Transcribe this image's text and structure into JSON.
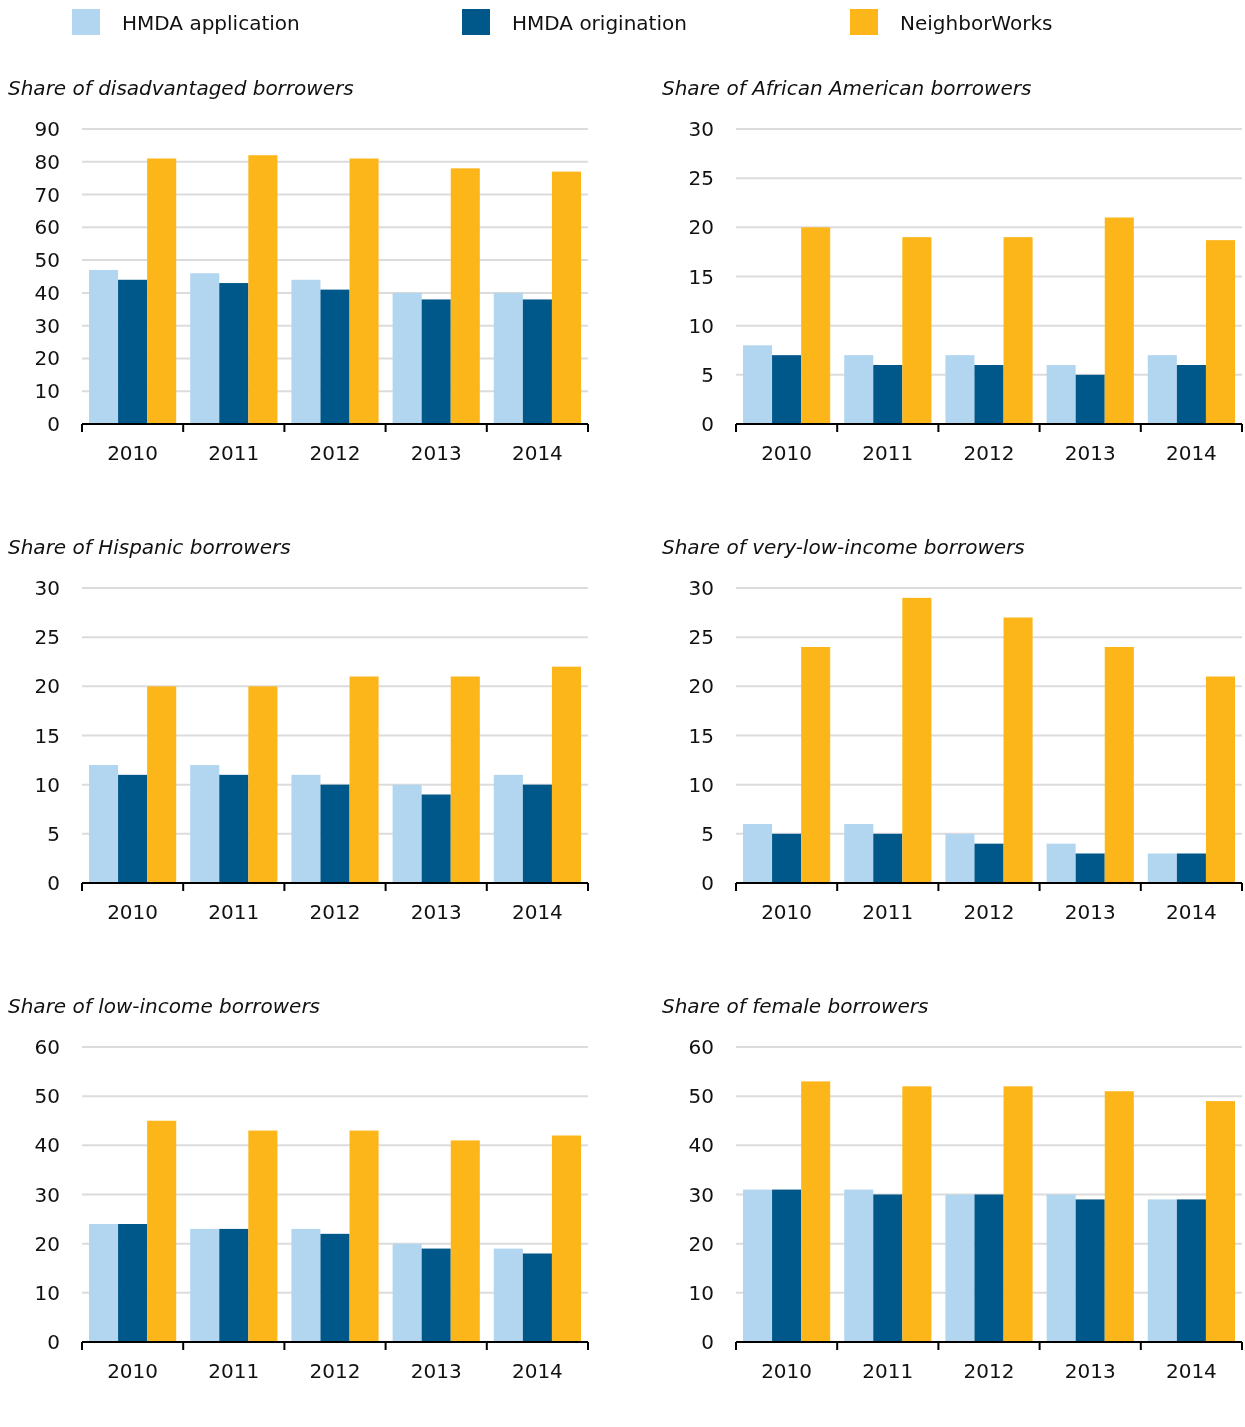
{
  "chart_data": [
    {
      "type": "bar",
      "title": "Share of disadvantaged borrowers",
      "categories": [
        "2010",
        "2011",
        "2012",
        "2013",
        "2014"
      ],
      "ylim": [
        0,
        90
      ],
      "yticks": [
        0,
        10,
        20,
        30,
        40,
        50,
        60,
        70,
        80,
        90
      ],
      "grid": "y",
      "legend": "top",
      "series": [
        {
          "name": "HMDA application",
          "color": "#b3d6f0",
          "values": [
            47,
            46,
            44,
            40,
            40
          ]
        },
        {
          "name": "HMDA origination",
          "color": "#00578a",
          "values": [
            44,
            43,
            41,
            38,
            38
          ]
        },
        {
          "name": "NeighborWorks",
          "color": "#fcb61a",
          "values": [
            81,
            82,
            81,
            78,
            77
          ]
        }
      ]
    },
    {
      "type": "bar",
      "title": "Share of African American borrowers",
      "categories": [
        "2010",
        "2011",
        "2012",
        "2013",
        "2014"
      ],
      "ylim": [
        0,
        30
      ],
      "yticks": [
        0,
        5,
        10,
        15,
        20,
        25,
        30
      ],
      "grid": "y",
      "series": [
        {
          "color": "#b3d6f0",
          "values": [
            8,
            7,
            7,
            6,
            7
          ]
        },
        {
          "color": "#00578a",
          "values": [
            7,
            6,
            6,
            5,
            6
          ]
        },
        {
          "color": "#fcb61a",
          "values": [
            20,
            19,
            19,
            21,
            18.7
          ]
        }
      ]
    },
    {
      "type": "bar",
      "title": "Share of Hispanic borrowers",
      "categories": [
        "2010",
        "2011",
        "2012",
        "2013",
        "2014"
      ],
      "ylim": [
        0,
        30
      ],
      "yticks": [
        0,
        5,
        10,
        15,
        20,
        25,
        30
      ],
      "grid": "y",
      "series": [
        {
          "color": "#b3d6f0",
          "values": [
            12,
            12,
            11,
            10,
            11
          ]
        },
        {
          "color": "#00578a",
          "values": [
            11,
            11,
            10,
            9,
            10
          ]
        },
        {
          "color": "#fcb61a",
          "values": [
            20,
            20,
            21,
            21,
            22
          ]
        }
      ]
    },
    {
      "type": "bar",
      "title": "Share of very-low-income borrowers",
      "categories": [
        "2010",
        "2011",
        "2012",
        "2013",
        "2014"
      ],
      "ylim": [
        0,
        30
      ],
      "yticks": [
        0,
        5,
        10,
        15,
        20,
        25,
        30
      ],
      "grid": "y",
      "series": [
        {
          "color": "#b3d6f0",
          "values": [
            6,
            6,
            5,
            4,
            3
          ]
        },
        {
          "color": "#00578a",
          "values": [
            5,
            5,
            4,
            3,
            3
          ]
        },
        {
          "color": "#fcb61a",
          "values": [
            24,
            29,
            27,
            24,
            21
          ]
        }
      ]
    },
    {
      "type": "bar",
      "title": "Share of low-income borrowers",
      "categories": [
        "2010",
        "2011",
        "2012",
        "2013",
        "2014"
      ],
      "ylim": [
        0,
        60
      ],
      "yticks": [
        0,
        10,
        20,
        30,
        40,
        50,
        60
      ],
      "grid": "y",
      "series": [
        {
          "color": "#b3d6f0",
          "values": [
            24,
            23,
            23,
            20,
            19
          ]
        },
        {
          "color": "#00578a",
          "values": [
            24,
            23,
            22,
            19,
            18
          ]
        },
        {
          "color": "#fcb61a",
          "values": [
            45,
            43,
            43,
            41,
            42
          ]
        }
      ]
    },
    {
      "type": "bar",
      "title": "Share of female borrowers",
      "categories": [
        "2010",
        "2011",
        "2012",
        "2013",
        "2014"
      ],
      "ylim": [
        0,
        60
      ],
      "yticks": [
        0,
        10,
        20,
        30,
        40,
        50,
        60
      ],
      "grid": "y",
      "series": [
        {
          "color": "#b3d6f0",
          "values": [
            31,
            31,
            30,
            30,
            29
          ]
        },
        {
          "color": "#00578a",
          "values": [
            31,
            30,
            30,
            29,
            29
          ]
        },
        {
          "color": "#fcb61a",
          "values": [
            53,
            52,
            52,
            51,
            49
          ]
        }
      ]
    }
  ]
}
